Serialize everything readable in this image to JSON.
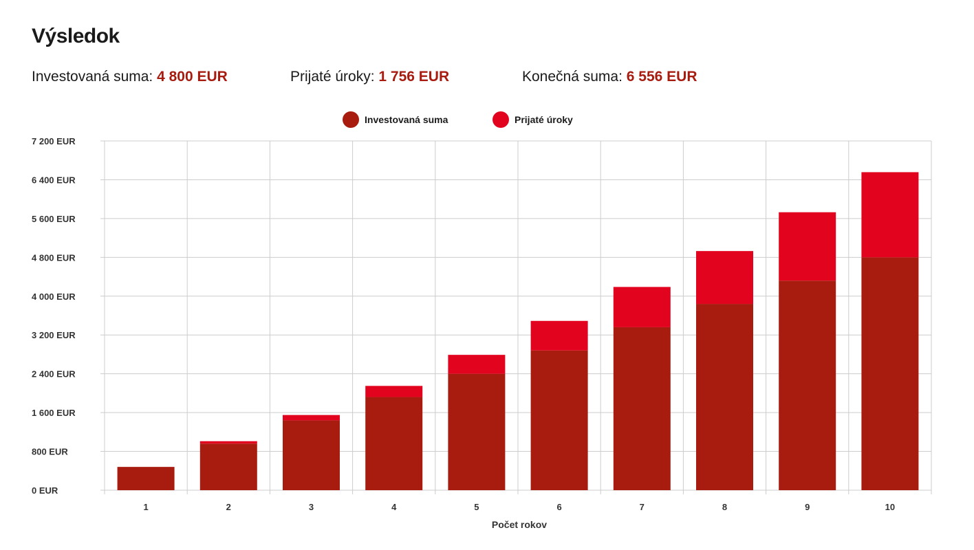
{
  "title": "Výsledok",
  "summary": {
    "invested_label": "Investovaná suma:",
    "invested_value": "4 800 EUR",
    "interest_label": "Prijaté úroky:",
    "interest_value": "1 756 EUR",
    "final_label": "Konečná suma:",
    "final_value": "6 556 EUR"
  },
  "colors": {
    "invested": "#a81c10",
    "interest": "#e2041f",
    "grid": "#cccccc",
    "accent_text": "#a81c10"
  },
  "chart_data": {
    "type": "bar",
    "stacked": true,
    "categories": [
      "1",
      "2",
      "3",
      "4",
      "5",
      "6",
      "7",
      "8",
      "9",
      "10"
    ],
    "series": [
      {
        "name": "Investovaná suma",
        "values": [
          480,
          960,
          1440,
          1920,
          2400,
          2880,
          3360,
          3840,
          4320,
          4800
        ]
      },
      {
        "name": "Prijaté úroky",
        "values": [
          0,
          50,
          110,
          230,
          390,
          610,
          830,
          1090,
          1410,
          1756
        ]
      }
    ],
    "y_ticks": [
      "0 EUR",
      "800 EUR",
      "1 600 EUR",
      "2 400 EUR",
      "3 200 EUR",
      "4 000 EUR",
      "4 800 EUR",
      "5 600 EUR",
      "6 400 EUR",
      "7 200 EUR"
    ],
    "ylim": [
      0,
      7200
    ],
    "xlabel": "Počet rokov",
    "ylabel": "",
    "legend_position": "top-center",
    "grid": true
  }
}
